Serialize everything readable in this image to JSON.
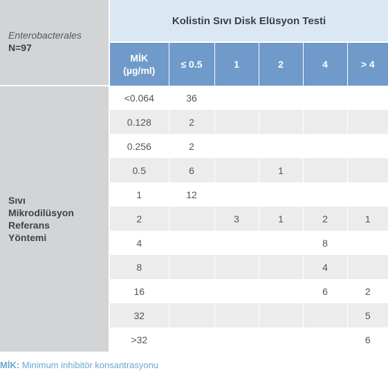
{
  "corner": {
    "organism": "Enterobacterales",
    "count": "N=97"
  },
  "header": {
    "title": "Kolistin Sıvı Disk Elüsyon Testi",
    "mic_label_line1": "MİK",
    "mic_label_line2": "(µg/ml)",
    "columns": [
      "≤ 0.5",
      "1",
      "2",
      "4",
      "> 4"
    ]
  },
  "side_label": [
    "Sıvı",
    "Mikrodilüsyon",
    "Referans",
    "Yöntemi"
  ],
  "rows": [
    {
      "mic": "<0.064",
      "cells": [
        "36",
        "",
        "",
        "",
        ""
      ]
    },
    {
      "mic": "0.128",
      "cells": [
        "2",
        "",
        "",
        "",
        ""
      ]
    },
    {
      "mic": "0.256",
      "cells": [
        "2",
        "",
        "",
        "",
        ""
      ]
    },
    {
      "mic": "0.5",
      "cells": [
        "6",
        "",
        "1",
        "",
        ""
      ]
    },
    {
      "mic": "1",
      "cells": [
        "12",
        "",
        "",
        "",
        ""
      ]
    },
    {
      "mic": "2",
      "cells": [
        "",
        "3",
        "1",
        "2",
        "1"
      ]
    },
    {
      "mic": "4",
      "cells": [
        "",
        "",
        "",
        "8",
        ""
      ]
    },
    {
      "mic": "8",
      "cells": [
        "",
        "",
        "",
        "4",
        ""
      ]
    },
    {
      "mic": "16",
      "cells": [
        "",
        "",
        "",
        "6",
        "2"
      ]
    },
    {
      "mic": "32",
      "cells": [
        "",
        "",
        "",
        "",
        "5"
      ]
    },
    {
      "mic": ">32",
      "cells": [
        "",
        "",
        "",
        "",
        "6"
      ]
    }
  ],
  "footnote": {
    "abbr": "MİK:",
    "text": " Minimum inhibitör konsantrasyonu"
  },
  "colors": {
    "title_bg": "#dbe8f3",
    "header_bg": "#6f9ac9",
    "side_bg": "#d3d4d6",
    "stripe": "#ececec",
    "footnote": "#69a7cf"
  }
}
